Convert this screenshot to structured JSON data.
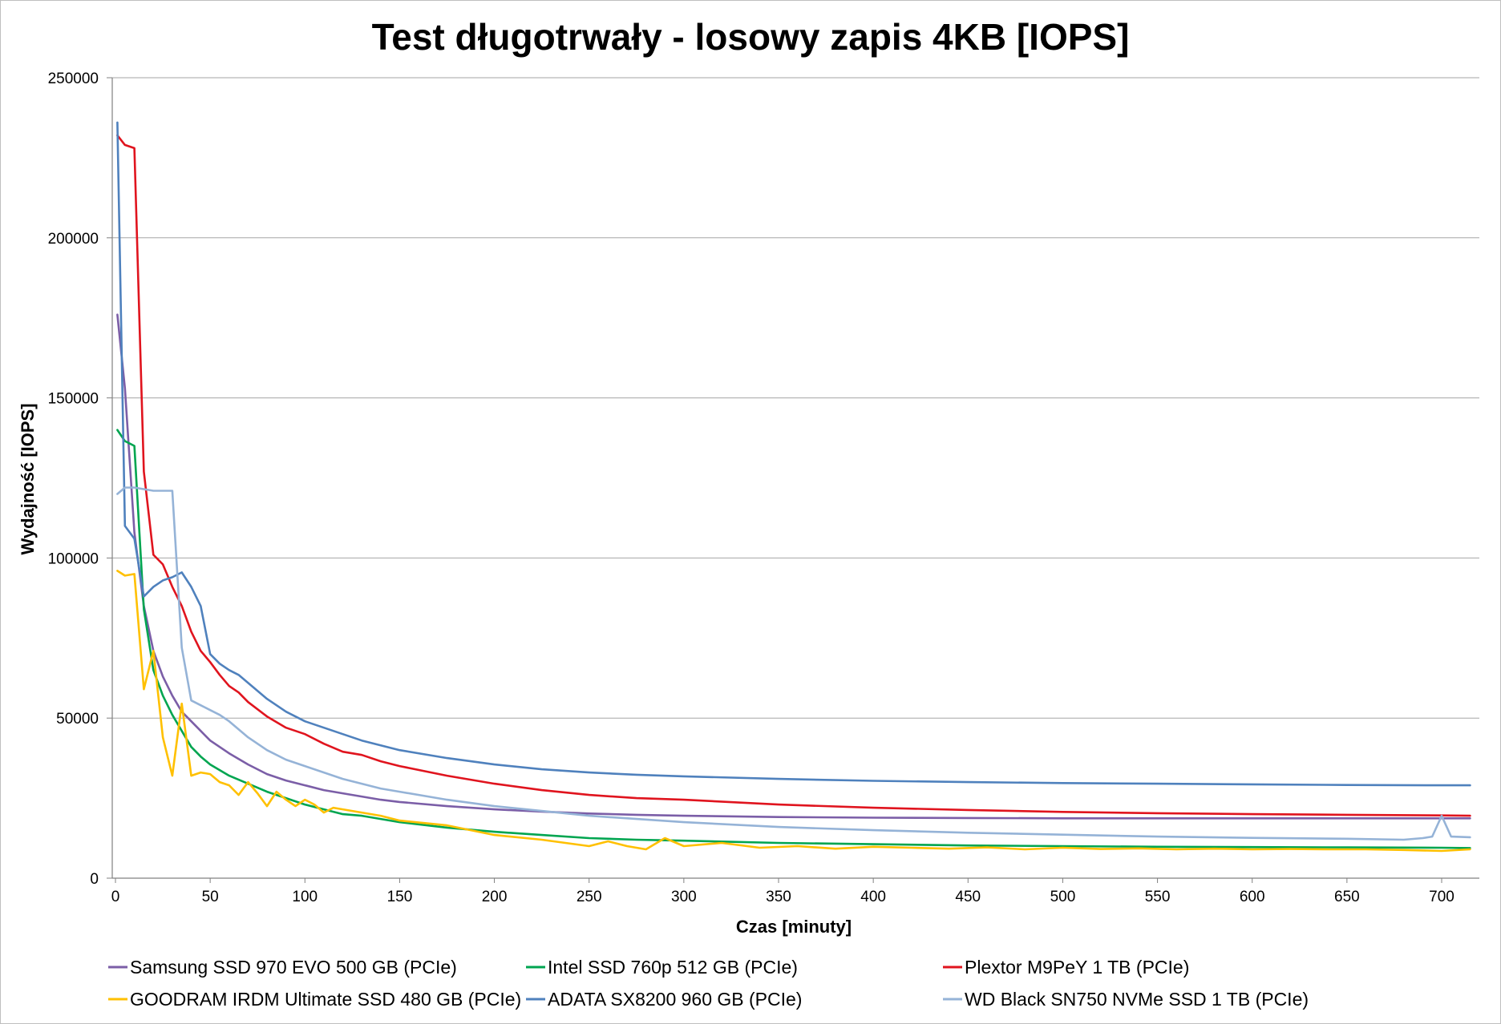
{
  "chart_data": {
    "type": "line",
    "title": "Test długotrwały - losowy zapis 4KB [IOPS]",
    "xlabel": "Czas [minuty]",
    "ylabel": "Wydajność [IOPS]",
    "xlim": [
      0,
      715
    ],
    "ylim": [
      0,
      250000
    ],
    "x_ticks": [
      0,
      50,
      100,
      150,
      200,
      250,
      300,
      350,
      400,
      450,
      500,
      550,
      600,
      650,
      700
    ],
    "y_ticks": [
      0,
      50000,
      100000,
      150000,
      200000,
      250000
    ],
    "grid": "horizontal",
    "legend_position": "bottom",
    "series": [
      {
        "name": "Samsung SSD 970 EVO 500 GB (PCIe)",
        "color": "#7b5ea7",
        "x": [
          1,
          5,
          10,
          15,
          20,
          25,
          30,
          35,
          40,
          45,
          50,
          60,
          70,
          80,
          90,
          100,
          110,
          120,
          130,
          140,
          150,
          175,
          200,
          225,
          250,
          275,
          300,
          350,
          400,
          450,
          500,
          550,
          600,
          650,
          700,
          715
        ],
        "y": [
          176000,
          153000,
          108000,
          85000,
          71000,
          63000,
          57000,
          52000,
          49000,
          46000,
          43000,
          39000,
          35500,
          32500,
          30500,
          29000,
          27500,
          26500,
          25500,
          24500,
          23800,
          22500,
          21500,
          20800,
          20200,
          19800,
          19500,
          19100,
          18900,
          18800,
          18700,
          18700,
          18700,
          18700,
          18700,
          18700
        ]
      },
      {
        "name": "Intel SSD 760p 512 GB (PCIe)",
        "color": "#00a550",
        "x": [
          1,
          5,
          10,
          15,
          20,
          25,
          30,
          35,
          40,
          45,
          50,
          60,
          70,
          80,
          90,
          100,
          110,
          120,
          130,
          140,
          150,
          175,
          200,
          225,
          250,
          275,
          300,
          350,
          400,
          450,
          500,
          550,
          600,
          650,
          700,
          715
        ],
        "y": [
          140000,
          136500,
          135000,
          84000,
          65000,
          57000,
          51000,
          46000,
          41000,
          38000,
          35500,
          32000,
          29500,
          27000,
          25000,
          23000,
          21500,
          20000,
          19500,
          18500,
          17500,
          15800,
          14500,
          13500,
          12500,
          12000,
          11700,
          11000,
          10600,
          10200,
          10000,
          9800,
          9700,
          9600,
          9500,
          9400
        ]
      },
      {
        "name": "Plextor M9PeY 1 TB (PCIe)",
        "color": "#e0141e",
        "x": [
          1,
          5,
          10,
          15,
          20,
          25,
          30,
          35,
          40,
          45,
          50,
          55,
          60,
          65,
          70,
          80,
          90,
          100,
          110,
          120,
          130,
          140,
          150,
          175,
          200,
          225,
          250,
          275,
          300,
          350,
          400,
          450,
          500,
          550,
          600,
          650,
          700,
          715
        ],
        "y": [
          232000,
          229000,
          228000,
          127000,
          101000,
          98000,
          91000,
          85000,
          77000,
          71000,
          67500,
          63500,
          60000,
          58000,
          55000,
          50500,
          47000,
          45000,
          42000,
          39500,
          38500,
          36500,
          35000,
          32000,
          29500,
          27500,
          26000,
          25000,
          24500,
          23000,
          22000,
          21300,
          20700,
          20300,
          20000,
          19800,
          19600,
          19500
        ]
      },
      {
        "name": "GOODRAM IRDM Ultimate SSD 480 GB (PCIe)",
        "color": "#ffc000",
        "x": [
          1,
          5,
          10,
          15,
          20,
          25,
          30,
          35,
          40,
          45,
          50,
          55,
          60,
          65,
          70,
          75,
          80,
          85,
          90,
          95,
          100,
          105,
          110,
          115,
          120,
          130,
          140,
          150,
          175,
          200,
          225,
          250,
          260,
          270,
          280,
          290,
          300,
          320,
          340,
          360,
          380,
          400,
          420,
          440,
          460,
          480,
          500,
          520,
          540,
          560,
          580,
          600,
          620,
          640,
          660,
          680,
          700,
          715
        ],
        "y": [
          96000,
          94500,
          95000,
          59000,
          71000,
          44000,
          32000,
          54500,
          32000,
          33000,
          32500,
          30000,
          29000,
          26000,
          30000,
          26500,
          22500,
          27000,
          24500,
          22500,
          24500,
          23000,
          20500,
          22000,
          21500,
          20500,
          19500,
          18000,
          16500,
          13500,
          12000,
          10000,
          11500,
          10000,
          9000,
          12500,
          10000,
          11000,
          9500,
          10000,
          9200,
          9800,
          9500,
          9200,
          9600,
          9000,
          9500,
          9100,
          9300,
          9000,
          9200,
          9000,
          9100,
          9000,
          9000,
          8800,
          8500,
          9000
        ]
      },
      {
        "name": "ADATA SX8200 960 GB (PCIe)",
        "color": "#4f81bd",
        "x": [
          1,
          5,
          10,
          15,
          20,
          25,
          30,
          35,
          40,
          45,
          50,
          55,
          60,
          65,
          70,
          80,
          90,
          100,
          110,
          120,
          130,
          140,
          150,
          175,
          200,
          225,
          250,
          275,
          300,
          350,
          400,
          450,
          500,
          550,
          600,
          650,
          700,
          715
        ],
        "y": [
          236000,
          110000,
          106000,
          88000,
          91000,
          93000,
          94000,
          95500,
          91000,
          85000,
          70000,
          67000,
          65000,
          63500,
          61000,
          56000,
          52000,
          49000,
          47000,
          45000,
          43000,
          41500,
          40000,
          37500,
          35500,
          34000,
          33000,
          32300,
          31800,
          31000,
          30400,
          30000,
          29700,
          29500,
          29300,
          29100,
          29000,
          29000
        ]
      },
      {
        "name": "WD Black SN750 NVMe SSD 1 TB (PCIe)",
        "color": "#95b3d7",
        "x": [
          1,
          5,
          10,
          15,
          20,
          25,
          30,
          35,
          40,
          45,
          50,
          55,
          60,
          65,
          70,
          80,
          90,
          100,
          110,
          120,
          130,
          140,
          150,
          175,
          200,
          225,
          250,
          275,
          300,
          350,
          400,
          450,
          500,
          550,
          600,
          650,
          680,
          690,
          695,
          700,
          705,
          715
        ],
        "y": [
          120000,
          122000,
          122000,
          121500,
          121000,
          121000,
          121000,
          72000,
          55500,
          54000,
          52500,
          51000,
          49000,
          46500,
          44000,
          40000,
          37000,
          35000,
          33000,
          31000,
          29500,
          28000,
          27000,
          24500,
          22500,
          21000,
          19500,
          18500,
          17500,
          16000,
          15000,
          14200,
          13600,
          13000,
          12600,
          12300,
          12000,
          12500,
          13000,
          19500,
          13000,
          12800
        ]
      }
    ]
  }
}
